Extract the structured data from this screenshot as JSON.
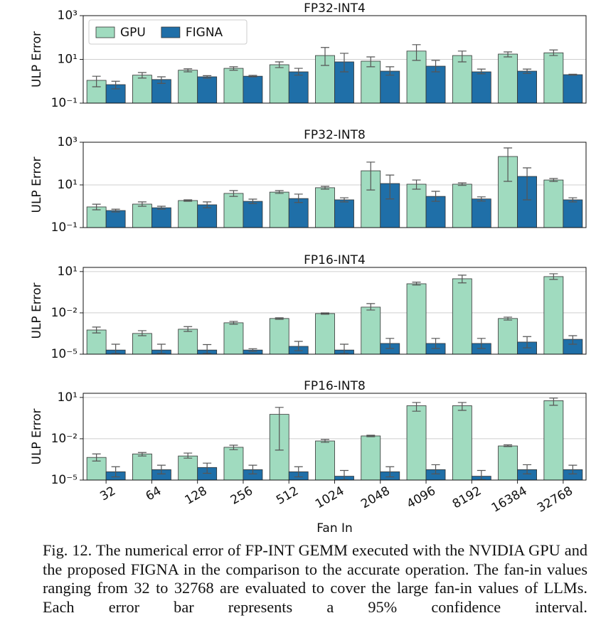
{
  "chart_data": [
    {
      "type": "bar",
      "title": "FP32-INT4",
      "ylabel": "ULP Error",
      "log": true,
      "grid": true,
      "legend": "upper left",
      "ylim": [
        0.1,
        1000
      ],
      "yticks": [
        {
          "value": 0.1,
          "label": "10⁻¹"
        },
        {
          "value": 10,
          "label": "10¹"
        },
        {
          "value": 1000,
          "label": "10³"
        }
      ],
      "series": [
        {
          "name": "GPU",
          "color": "#a0dbbf",
          "values": [
            1.1,
            1.9,
            3.2,
            3.9,
            5.7,
            15,
            8.3,
            24,
            15,
            17.5,
            20
          ],
          "lower": [
            0.56,
            1.4,
            2.7,
            3.2,
            4.2,
            5.3,
            4.6,
            9,
            7.7,
            13,
            15
          ],
          "upper": [
            1.7,
            2.5,
            3.7,
            4.6,
            7.7,
            35,
            13,
            47,
            24,
            22,
            27
          ]
        },
        {
          "name": "FIGNA",
          "color": "#1f6fa8",
          "values": [
            0.7,
            1.2,
            1.6,
            1.7,
            2.7,
            7.7,
            2.9,
            4.9,
            2.7,
            2.9,
            2.0
          ],
          "lower": [
            0.45,
            0.8,
            1.4,
            1.6,
            1.9,
            2.7,
            1.9,
            2.7,
            2.2,
            2.3,
            1.9
          ],
          "upper": [
            1.0,
            1.6,
            1.8,
            1.85,
            3.9,
            19,
            4.6,
            9,
            3.6,
            3.6,
            2.1
          ]
        }
      ]
    },
    {
      "type": "bar",
      "title": "FP32-INT8",
      "ylabel": "ULP Error",
      "log": true,
      "grid": true,
      "ylim": [
        0.1,
        1000
      ],
      "yticks": [
        {
          "value": 0.1,
          "label": "10⁻¹"
        },
        {
          "value": 10,
          "label": "10¹"
        },
        {
          "value": 1000,
          "label": "10³"
        }
      ],
      "series": [
        {
          "color": "#a0dbbf",
          "values": [
            0.93,
            1.26,
            1.85,
            4.0,
            4.6,
            7.4,
            46,
            10.8,
            10.8,
            215,
            17
          ],
          "lower": [
            0.68,
            1.0,
            1.7,
            2.9,
            4.0,
            6.3,
            5.8,
            6.3,
            9.5,
            14.7,
            14.5
          ],
          "upper": [
            1.25,
            1.6,
            2.0,
            5.4,
            5.4,
            8.6,
            117,
            17,
            12.5,
            540,
            20
          ]
        },
        {
          "color": "#1f6fa8",
          "values": [
            0.63,
            0.85,
            1.17,
            1.7,
            2.3,
            2.0,
            11.6,
            2.9,
            2.2,
            25,
            2.0
          ],
          "lower": [
            0.54,
            0.73,
            0.85,
            1.35,
            1.5,
            1.6,
            2.2,
            1.7,
            1.75,
            2.0,
            1.6
          ],
          "upper": [
            0.73,
            1.0,
            1.6,
            2.15,
            3.7,
            2.5,
            29,
            5,
            2.75,
            63,
            2.5
          ]
        }
      ]
    },
    {
      "type": "bar",
      "title": "FP16-INT4",
      "ylabel": "ULP Error",
      "log": true,
      "grid": true,
      "ylim": [
        1e-05,
        20
      ],
      "yticks": [
        {
          "value": 1e-05,
          "label": "10⁻⁵"
        },
        {
          "value": 0.01,
          "label": "10⁻²"
        },
        {
          "value": 10,
          "label": "10¹"
        }
      ],
      "series": [
        {
          "color": "#a0dbbf",
          "values": [
            0.00057,
            0.00032,
            0.00065,
            0.0019,
            0.0039,
            0.0089,
            0.026,
            1.3,
            3.0,
            0.0039,
            4.3
          ],
          "lower": [
            0.00035,
            0.00022,
            0.00045,
            0.0015,
            0.0034,
            0.0079,
            0.016,
            1.05,
            1.5,
            0.003,
            2.7
          ],
          "upper": [
            0.00093,
            0.00051,
            0.001,
            0.0024,
            0.0044,
            0.01,
            0.047,
            1.7,
            5.5,
            0.0049,
            6.9
          ]
        },
        {
          "color": "#1f6fa8",
          "values": [
            2e-05,
            2e-05,
            2e-05,
            2e-05,
            3.7e-05,
            2e-05,
            6e-05,
            6e-05,
            6e-05,
            7.6e-05,
            0.00012
          ],
          "lower": [
            1.1e-05,
            1.1e-05,
            1.1e-05,
            1.6e-05,
            1.8e-05,
            1.1e-05,
            2.6e-05,
            2.6e-05,
            2.6e-05,
            2.9e-05,
            5.3e-05
          ],
          "upper": [
            5.3e-05,
            5.3e-05,
            5e-05,
            2.5e-05,
            8.5e-05,
            5.3e-05,
            0.00014,
            0.00014,
            0.00014,
            0.00019,
            0.00022
          ]
        }
      ]
    },
    {
      "type": "bar",
      "title": "FP16-INT8",
      "ylabel": "ULP Error",
      "xlabel": "Fan In",
      "log": true,
      "grid": true,
      "categories": [
        "32",
        "64",
        "128",
        "256",
        "512",
        "1024",
        "2048",
        "4096",
        "8192",
        "16384",
        "32768"
      ],
      "ylim": [
        1e-05,
        20
      ],
      "yticks": [
        {
          "value": 1e-05,
          "label": "10⁻⁵"
        },
        {
          "value": 0.01,
          "label": "10⁻²"
        },
        {
          "value": 10,
          "label": "10¹"
        }
      ],
      "series": [
        {
          "color": "#a0dbbf",
          "values": [
            0.00044,
            0.00079,
            0.00056,
            0.0024,
            0.59,
            0.0069,
            0.016,
            2.5,
            2.5,
            0.003,
            5.8
          ],
          "lower": [
            0.00024,
            0.00056,
            0.00039,
            0.0016,
            0.0015,
            0.0055,
            0.014,
            1.0,
            1.15,
            0.0027,
            2.7
          ],
          "upper": [
            0.00079,
            0.001,
            0.00091,
            0.0034,
            1.9,
            0.0089,
            0.018,
            4.3,
            4.3,
            0.0036,
            8.9
          ]
        },
        {
          "color": "#1f6fa8",
          "values": [
            4e-05,
            5.7e-05,
            8.2e-05,
            5.7e-05,
            4e-05,
            1.9e-05,
            4e-05,
            5.7e-05,
            1.9e-05,
            5.7e-05,
            5.7e-05
          ],
          "lower": [
            1.7e-05,
            2.8e-05,
            3.1e-05,
            2.8e-05,
            1.7e-05,
            1.05e-05,
            1.7e-05,
            2.8e-05,
            1.05e-05,
            2.8e-05,
            2.8e-05
          ],
          "upper": [
            9.3e-05,
            0.00012,
            0.00017,
            0.00012,
            9.3e-05,
            5e-05,
            9.3e-05,
            0.00013,
            5e-05,
            0.00013,
            0.00012
          ]
        }
      ]
    }
  ],
  "caption": "Fig. 12.  The numerical error of FP-INT GEMM executed with the NVIDIA GPU and the proposed FIGNA in the comparison to the accurate operation. The fan-in values ranging from 32 to 32768 are evaluated to cover the large fan-in values of LLMs. Each error bar represents a 95% confidence interval."
}
